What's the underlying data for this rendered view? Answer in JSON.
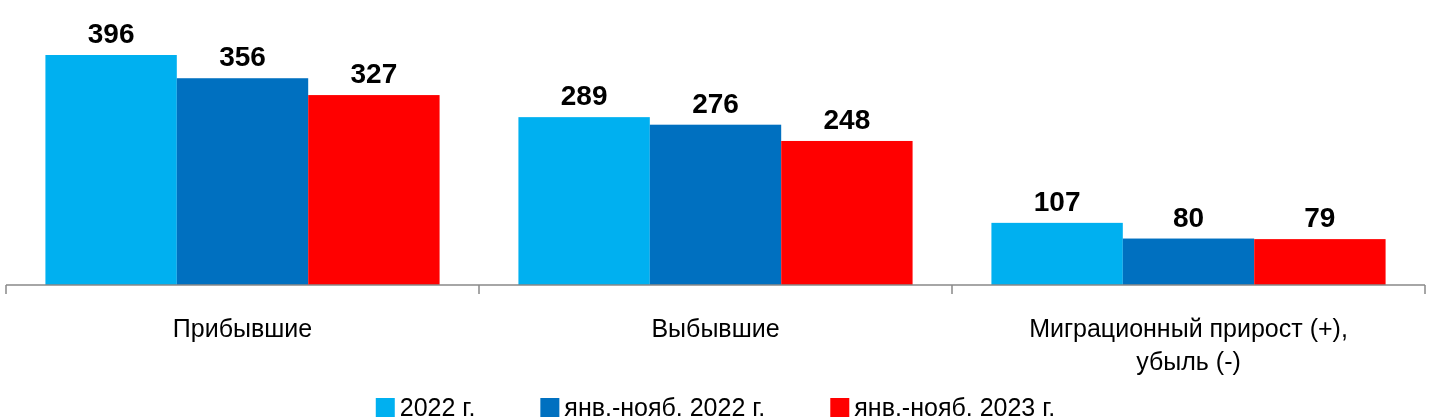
{
  "chart_data": {
    "type": "bar",
    "categories": [
      "Прибывшие",
      "Выбывшие",
      "Миграционный прирост (+), убыль (-)"
    ],
    "series": [
      {
        "name": "2022 г.",
        "color": "#00b0f0",
        "values": [
          396,
          289,
          107
        ]
      },
      {
        "name": "янв.-нояб. 2022 г.",
        "color": "#0070c0",
        "values": [
          356,
          276,
          80
        ]
      },
      {
        "name": "янв.-нояб. 2023 г.",
        "color": "#ff0000",
        "values": [
          327,
          248,
          79
        ]
      }
    ],
    "data_labels": true,
    "legend": "bottom"
  }
}
